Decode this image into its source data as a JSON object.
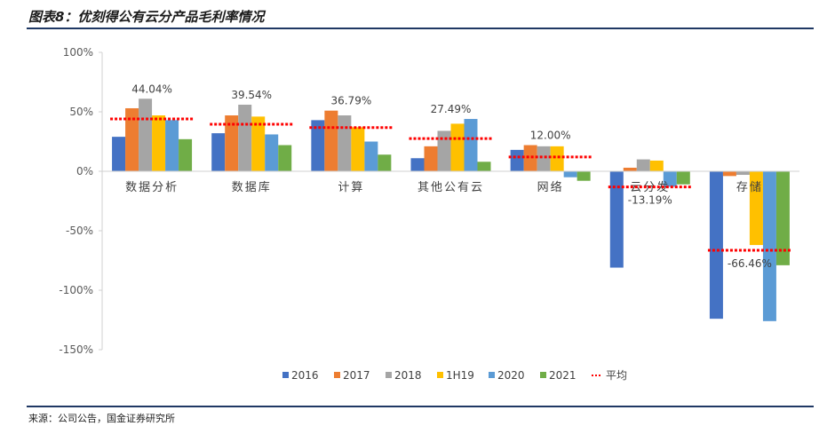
{
  "figure": {
    "title": "图表8：优刻得公有云分产品毛利率情况",
    "source": "来源：公司公告，国金证券研究所"
  },
  "colors": {
    "2016": "#4472c4",
    "2017": "#ed7d31",
    "2018": "#a5a5a5",
    "1H19": "#ffc000",
    "2020": "#5b9bd5",
    "2021": "#70ad47",
    "average": "#ff0000",
    "rule": "#1f3864"
  },
  "chart_data": {
    "type": "bar",
    "title": "优刻得公有云分产品毛利率情况",
    "categories": [
      "数据分析",
      "数据库",
      "计算",
      "其他公有云",
      "网络",
      "云分发",
      "存储"
    ],
    "series": [
      {
        "name": "2016",
        "values": [
          29,
          32,
          43,
          11,
          18,
          -81,
          -124
        ]
      },
      {
        "name": "2017",
        "values": [
          53,
          47,
          51,
          21,
          22,
          3,
          -4
        ]
      },
      {
        "name": "2018",
        "values": [
          61,
          56,
          47,
          34,
          21,
          10,
          -3
        ]
      },
      {
        "name": "1H19",
        "values": [
          47,
          46,
          37,
          40,
          21,
          9,
          -62
        ]
      },
      {
        "name": "2020",
        "values": [
          43,
          31,
          25,
          44,
          -5,
          -13,
          -126
        ]
      },
      {
        "name": "2021",
        "values": [
          27,
          22,
          14,
          8,
          -8,
          -11,
          -79
        ]
      }
    ],
    "average": {
      "name": "平均",
      "values": [
        44.04,
        39.54,
        36.79,
        27.49,
        12.0,
        -13.19,
        -66.46
      ],
      "labels": [
        "44.04%",
        "39.54%",
        "36.79%",
        "27.49%",
        "12.00%",
        "-13.19%",
        "-66.46%"
      ]
    },
    "y_ticks": [
      100,
      50,
      0,
      -50,
      -100,
      -150
    ],
    "y_tick_labels": [
      "100%",
      "50%",
      "0%",
      "-50%",
      "-100%",
      "-150%"
    ],
    "ylim": [
      -150,
      100
    ],
    "legend_position": "bottom",
    "legend": [
      "2016",
      "2017",
      "2018",
      "1H19",
      "2020",
      "2021",
      "平均"
    ],
    "grid": false
  }
}
